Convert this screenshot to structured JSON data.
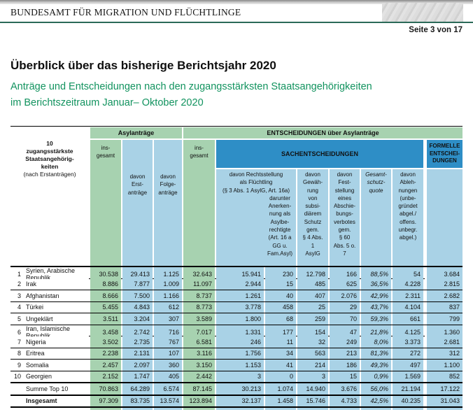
{
  "colors": {
    "green": "#a7d2b0",
    "blue": "#a9d2e6",
    "dark_blue": "#2e8ec6",
    "rule_green": "#2b6a58",
    "subtitle_green": "#12935f"
  },
  "header": {
    "agency": "BUNDESAMT FÜR MIGRATION UND FLÜCHTLINGE",
    "page_indicator": "Seite 3 von 17"
  },
  "intro": {
    "title": "Überblick über das bisherige Berichtsjahr 2020",
    "subtitle_line1": "Anträge und Entscheidungen nach den zugangsstärksten Staatsangehörigkeiten",
    "subtitle_line2": "im Berichtszeitraum Januar– Oktober 2020"
  },
  "table": {
    "headers": {
      "name_col_main": "10\nzugangsstärkste\nStaatsangehörig-\nkeiten",
      "name_col_sub": "(nach Erstanträgen)",
      "band_asylantraege": "Asylanträge",
      "band_entscheidungen": "ENTSCHEIDUNGEN über Asylanträge",
      "band_sachentscheidungen": "SACHENTSCHEIDUNGEN",
      "band_formelle": "FORMELLE\nENTSCHEI-\nDUNGEN",
      "insgesamt": "ins-\ngesamt",
      "erstantraege": "davon\nErst-\nanträge",
      "folgeantraege": "davon\nFolge-\nanträge",
      "fluechtling_main": "davon Rechtsstellung\nals Flüchtling\n(§ 3 Abs. 1 AsylG, Art. 16a)",
      "fluechtling_sub": "darunter\nAnerken-\nnung als\nAsylbe-\nrechtigte\n(Art. 16 a\nGG u.\nFam.Asyl)",
      "subsidiaer": "davon\nGewäh-\nrung\nvon\nsubsi-\ndiärem\nSchutz\ngem.\n§ 4 Abs.\n1\nAsylG",
      "abschiebungsverbot": "davon\nFest-\nstellung\neines\nAbschie-\nbungs-\nverbotes\ngem.\n§ 60\nAbs. 5 o.\n7",
      "gesamtschutzquote": "Gesamt-\nschutz-\nquote",
      "ablehnungen": "davon\nAbleh-\nnungen\n(unbe-\ngründet\nabgel./\noffens.\nunbegr.\nabgel.)"
    },
    "rows": [
      {
        "rank": "1",
        "name": "Syrien, Arabische Republik",
        "values": [
          "30.538",
          "29.413",
          "1.125",
          "32.643",
          "15.941",
          "230",
          "12.798",
          "166",
          "88,5%",
          "54",
          "3.684"
        ]
      },
      {
        "rank": "2",
        "name": "Irak",
        "values": [
          "8.886",
          "7.877",
          "1.009",
          "11.097",
          "2.944",
          "15",
          "485",
          "625",
          "36,5%",
          "4.228",
          "2.815"
        ]
      },
      {
        "rank": "3",
        "name": "Afghanistan",
        "values": [
          "8.666",
          "7.500",
          "1.166",
          "8.737",
          "1.261",
          "40",
          "407",
          "2.076",
          "42,9%",
          "2.311",
          "2.682"
        ]
      },
      {
        "rank": "4",
        "name": "Türkei",
        "values": [
          "5.455",
          "4.843",
          "612",
          "8.773",
          "3.778",
          "458",
          "25",
          "29",
          "43,7%",
          "4.104",
          "837"
        ]
      },
      {
        "rank": "5",
        "name": "Ungeklärt",
        "values": [
          "3.511",
          "3.204",
          "307",
          "3.589",
          "1.800",
          "68",
          "259",
          "70",
          "59,3%",
          "661",
          "799"
        ]
      },
      {
        "rank": "6",
        "name": "Iran, Islamische Republik",
        "values": [
          "3.458",
          "2.742",
          "716",
          "7.017",
          "1.331",
          "177",
          "154",
          "47",
          "21,8%",
          "4.125",
          "1.360"
        ]
      },
      {
        "rank": "7",
        "name": "Nigeria",
        "values": [
          "3.502",
          "2.735",
          "767",
          "6.581",
          "246",
          "11",
          "32",
          "249",
          "8,0%",
          "3.373",
          "2.681"
        ]
      },
      {
        "rank": "8",
        "name": "Eritrea",
        "values": [
          "2.238",
          "2.131",
          "107",
          "3.116",
          "1.756",
          "34",
          "563",
          "213",
          "81,3%",
          "272",
          "312"
        ]
      },
      {
        "rank": "9",
        "name": "Somalia",
        "values": [
          "2.457",
          "2.097",
          "360",
          "3.150",
          "1.153",
          "41",
          "214",
          "186",
          "49,3%",
          "497",
          "1.100"
        ]
      },
      {
        "rank": "10",
        "name": "Georgien",
        "values": [
          "2.152",
          "1.747",
          "405",
          "2.442",
          "3",
          "0",
          "3",
          "15",
          "0,9%",
          "1.569",
          "852"
        ]
      }
    ],
    "summary_rows": [
      {
        "rank": "",
        "name": "Summe Top 10",
        "values": [
          "70.863",
          "64.289",
          "6.574",
          "87.145",
          "30.213",
          "1.074",
          "14.940",
          "3.676",
          "56,0%",
          "21.194",
          "17.122"
        ]
      },
      {
        "rank": "",
        "name": "Insgesamt",
        "values": [
          "97.309",
          "83.735",
          "13.574",
          "123.894",
          "32.137",
          "1.458",
          "15.746",
          "4.733",
          "42,5%",
          "40.235",
          "31.043"
        ]
      }
    ]
  }
}
